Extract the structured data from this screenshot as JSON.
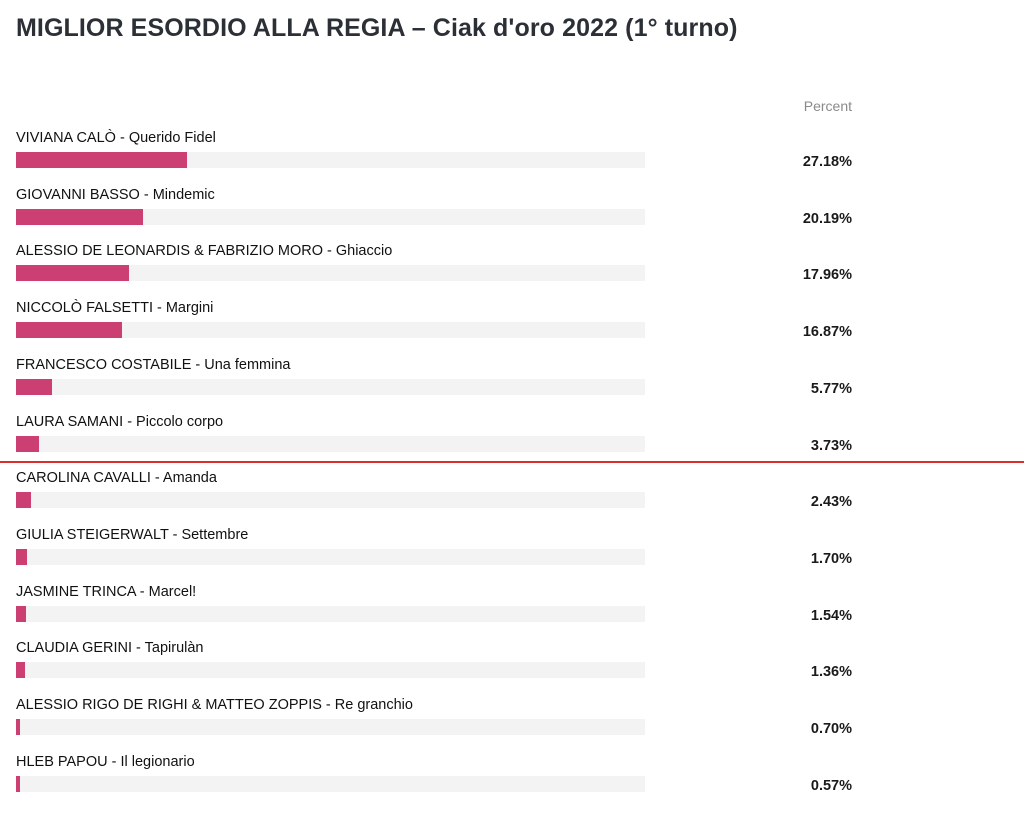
{
  "title": "MIGLIOR ESORDIO ALLA REGIA – Ciak d'oro 2022 (1° turno)",
  "column_header": "Percent",
  "colors": {
    "bar": "#cc3f72",
    "track": "#f3f3f3",
    "cutoff_line": "#d9302c"
  },
  "chart_data": {
    "type": "bar",
    "title": "MIGLIOR ESORDIO ALLA REGIA – Ciak d'oro 2022 (1° turno)",
    "orientation": "horizontal",
    "value_header": "Percent",
    "xlim": [
      0,
      100
    ],
    "categories": [
      "VIVIANA CALÒ - Querido Fidel",
      "GIOVANNI BASSO - Mindemic",
      "ALESSIO DE LEONARDIS & FABRIZIO MORO - Ghiaccio",
      "NICCOLÒ FALSETTI - Margini",
      "FRANCESCO COSTABILE - Una femmina",
      "LAURA SAMANI - Piccolo corpo",
      "CAROLINA CAVALLI - Amanda",
      "GIULIA STEIGERWALT - Settembre",
      "JASMINE TRINCA - Marcel!",
      "CLAUDIA GERINI - Tapirulàn",
      "ALESSIO RIGO DE RIGHI & MATTEO ZOPPIS - Re granchio",
      "HLEB PAPOU - Il legionario"
    ],
    "values": [
      27.18,
      20.19,
      17.96,
      16.87,
      5.77,
      3.73,
      2.43,
      1.7,
      1.54,
      1.36,
      0.7,
      0.57
    ],
    "value_labels": [
      "27.18%",
      "20.19%",
      "17.96%",
      "16.87%",
      "5.77%",
      "3.73%",
      "2.43%",
      "1.70%",
      "1.54%",
      "1.36%",
      "0.70%",
      "0.57%"
    ],
    "cutoff_after_index": 5
  }
}
